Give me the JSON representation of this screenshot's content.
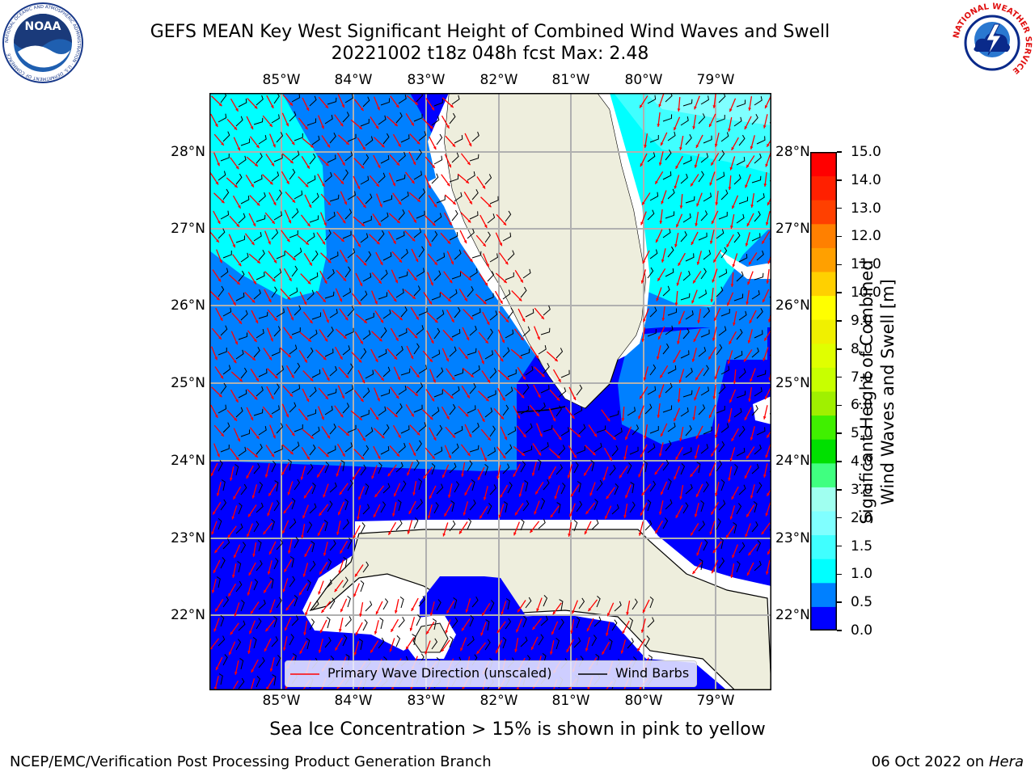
{
  "header": {
    "title_line1": "GEFS MEAN Key West Significant Height of Combined Wind Waves and Swell",
    "title_line2": "20221002 t18z 048h fcst   Max: 2.48"
  },
  "logos": {
    "noaa_text": "NOAA",
    "noaa_ring": "NATIONAL OCEANIC AND ATMOSPHERIC ADMINISTRATION · U.S. DEPARTMENT OF COMMERCE",
    "nws_ring": "NATIONAL WEATHER SERVICE"
  },
  "map": {
    "lon_labels": [
      "85°W",
      "84°W",
      "83°W",
      "82°W",
      "81°W",
      "80°W",
      "79°W"
    ],
    "lat_labels": [
      "28°N",
      "27°N",
      "26°N",
      "25°N",
      "24°N",
      "23°N",
      "22°N"
    ],
    "legend": {
      "wave_label": "Primary Wave Direction (unscaled)",
      "barb_label": "Wind Barbs"
    },
    "colors": {
      "land": "#eeeedd",
      "wave_arrow": "#ff0000",
      "barb": "#000000",
      "grid": "#b0b0b0"
    }
  },
  "colorbar": {
    "label_line1": "Significant Height of Combined",
    "label_line2": "Wind Waves and Swell [m]",
    "ticks": [
      "15.0",
      "14.0",
      "13.0",
      "12.0",
      "11.0",
      "10.0",
      "9.0",
      "8.0",
      "7.0",
      "6.0",
      "5.0",
      "4.0",
      "3.0",
      "2.0",
      "1.5",
      "1.0",
      "0.5",
      "0.0"
    ],
    "colors": [
      "#0000ff",
      "#0080ff",
      "#00ffff",
      "#40ffff",
      "#80ffff",
      "#a0fff0",
      "#40ff80",
      "#00e000",
      "#40f000",
      "#a0f000",
      "#c8ff00",
      "#e0ff00",
      "#f0f000",
      "#ffff00",
      "#ffd000",
      "#ffa000",
      "#ff8000",
      "#ff4000",
      "#ff2000",
      "#ff0000"
    ]
  },
  "footer": {
    "subtitle": "Sea Ice Concentration > 15% is shown in pink to yellow",
    "left": "NCEP/EMC/Verification Post Processing Product Generation Branch",
    "right_prefix": "06 Oct 2022 on ",
    "right_host": "Hera"
  }
}
